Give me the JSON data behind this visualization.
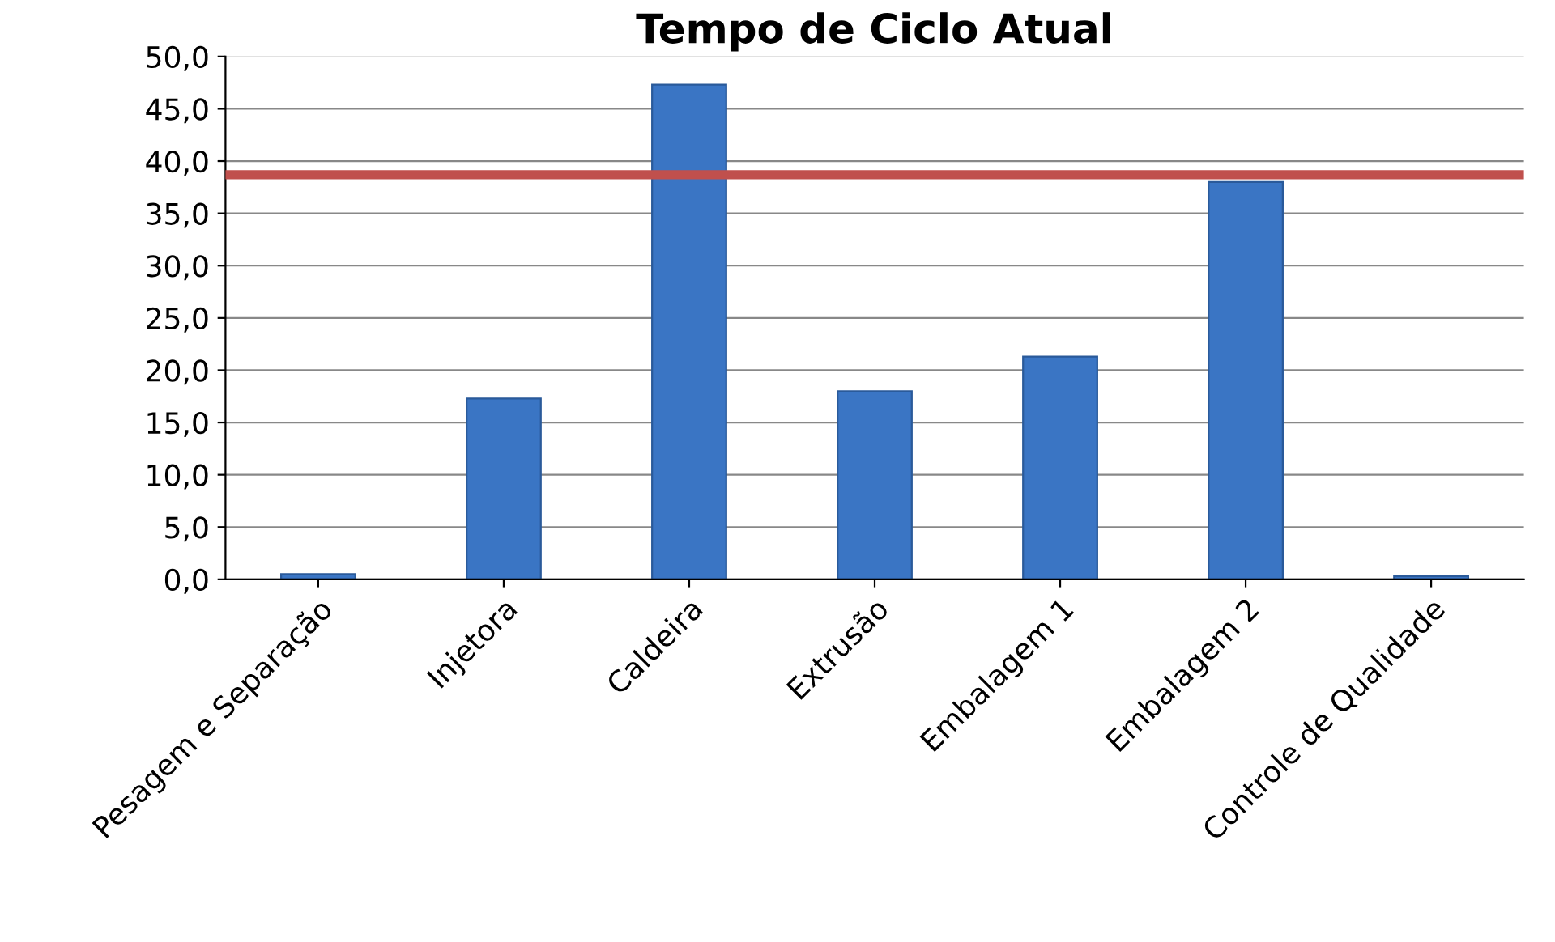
{
  "chart_data": {
    "type": "bar",
    "title": "Tempo de Ciclo Atual",
    "categories": [
      "Pesagem e Separação",
      "Injetora",
      "Caldeira",
      "Extrusão",
      "Embalagem 1",
      "Embalagem 2",
      "Controle de Qualidade"
    ],
    "values": [
      0.5,
      17.3,
      47.3,
      18.0,
      21.3,
      38.0,
      0.3
    ],
    "color": "#3a75c4",
    "ylim": [
      0,
      50
    ],
    "yticks": [
      {
        "value": 0,
        "label": "0,0"
      },
      {
        "value": 5,
        "label": "5,0"
      },
      {
        "value": 10,
        "label": "10,0"
      },
      {
        "value": 15,
        "label": "15,0"
      },
      {
        "value": 20,
        "label": "20,0"
      },
      {
        "value": 25,
        "label": "25,0"
      },
      {
        "value": 30,
        "label": "30,0"
      },
      {
        "value": 35,
        "label": "35,0"
      },
      {
        "value": 40,
        "label": "40,0"
      },
      {
        "value": 45,
        "label": "45,0"
      },
      {
        "value": 50,
        "label": "50,0"
      }
    ],
    "grid": "y",
    "ref_lines": [
      {
        "axis": "y",
        "value": 38.7,
        "color": "#c0504d"
      }
    ]
  }
}
